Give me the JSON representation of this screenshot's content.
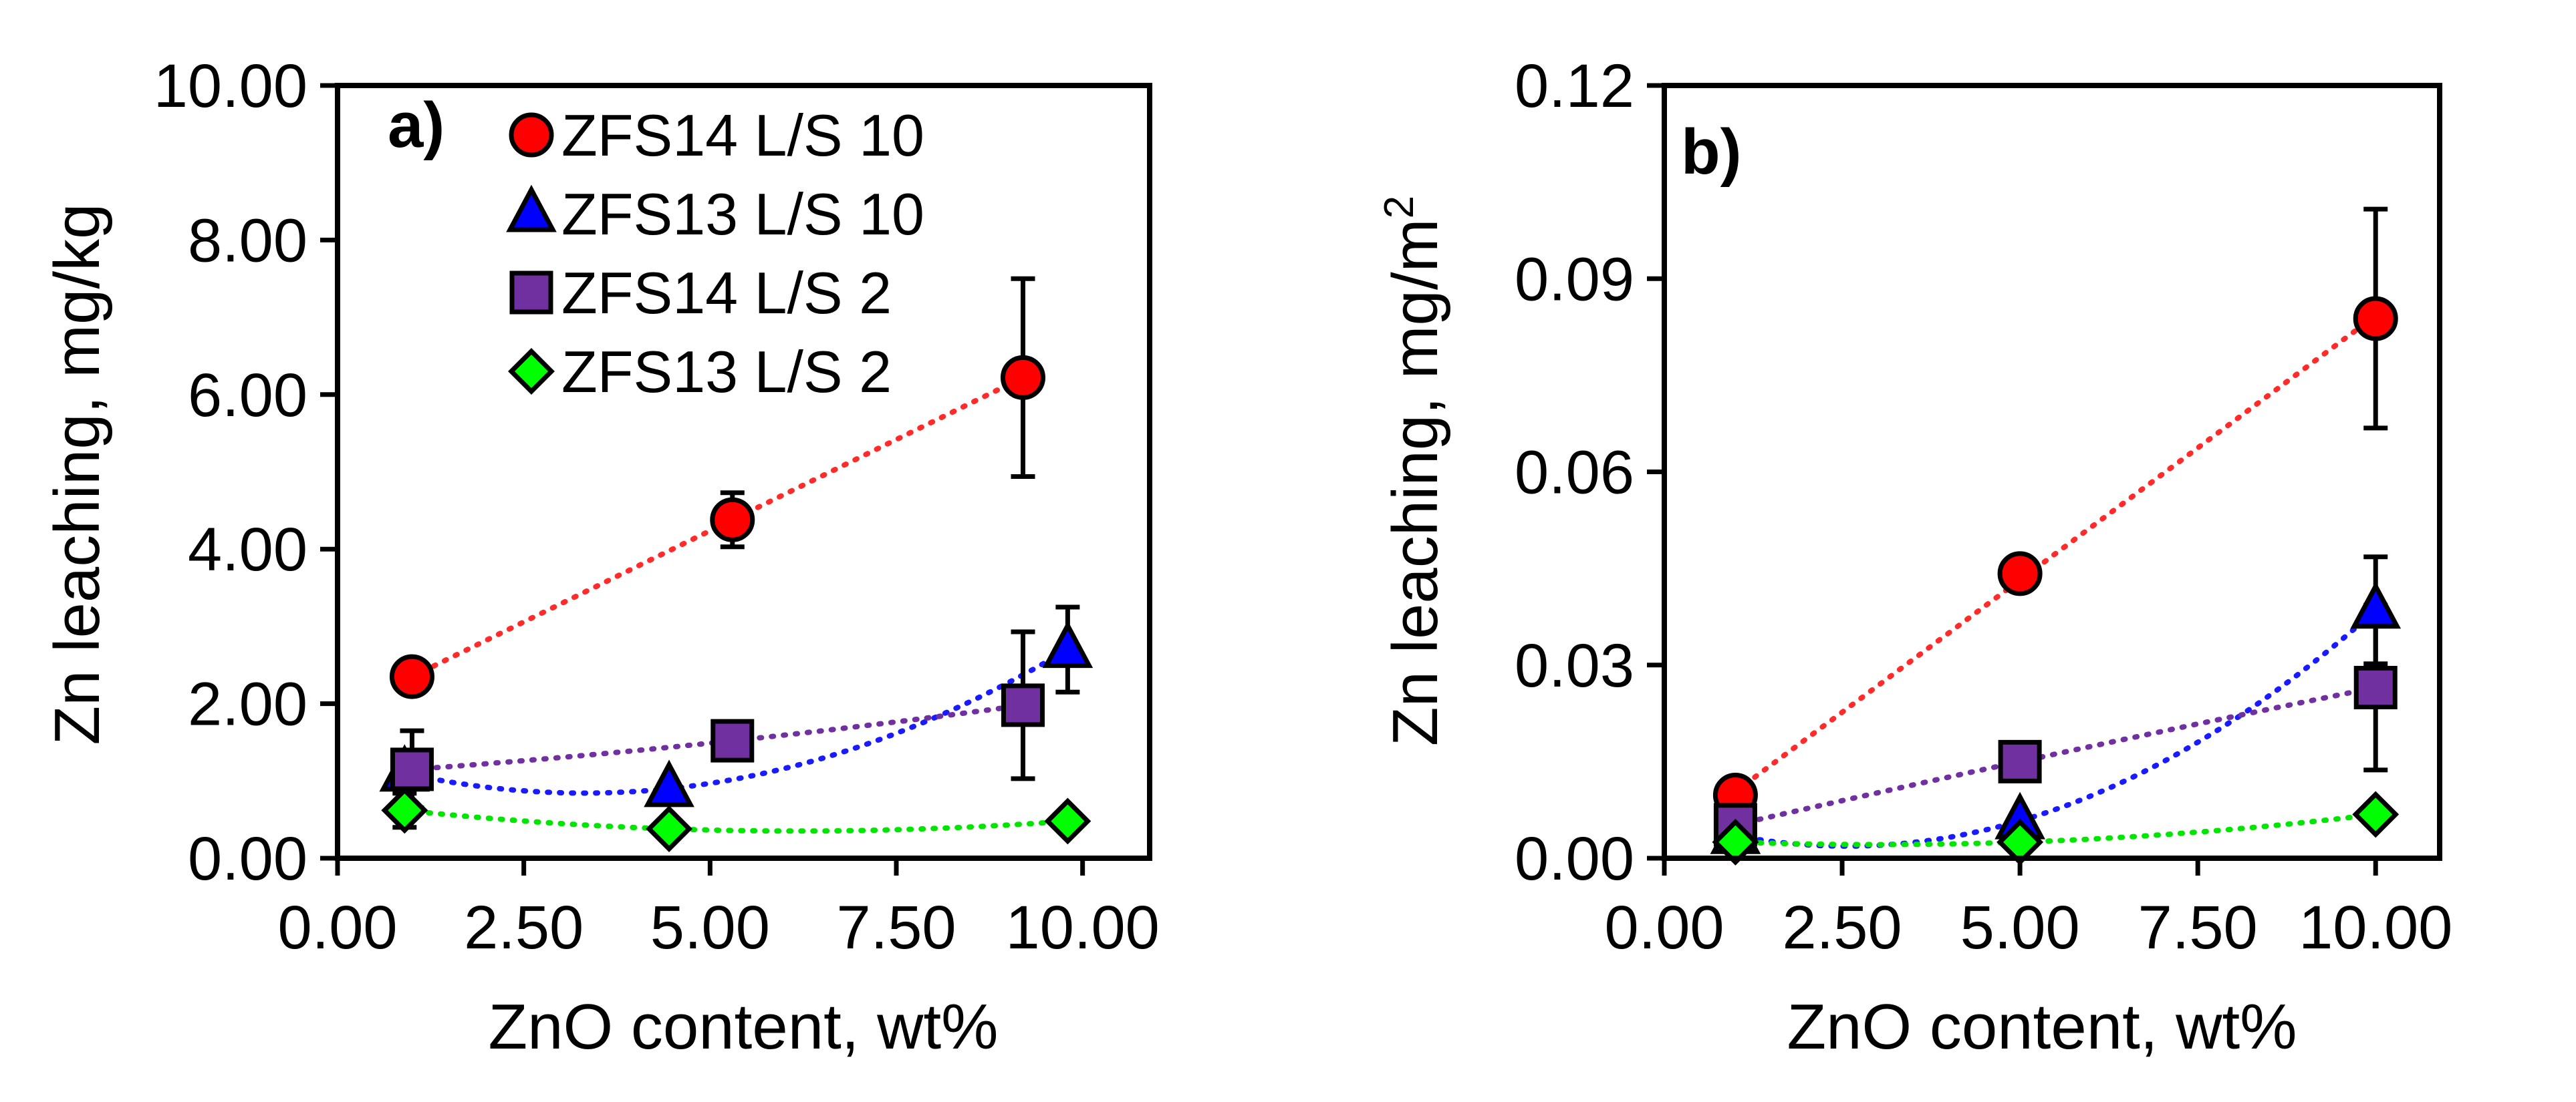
{
  "chart_data": [
    {
      "type": "scatter",
      "panel_label": "a)",
      "xlabel": "ZnO content, wt%",
      "ylabel": "Zn leaching, mg/kg",
      "xlim": [
        0,
        10.9
      ],
      "ylim": [
        0,
        10
      ],
      "xticks": [
        "0.00",
        "2.50",
        "5.00",
        "7.50",
        "10.00"
      ],
      "xtick_values": [
        0,
        2.5,
        5,
        7.5,
        10
      ],
      "yticks": [
        "0.00",
        "2.00",
        "4.00",
        "6.00",
        "8.00",
        "10.00"
      ],
      "ytick_values": [
        0,
        2,
        4,
        6,
        8,
        10
      ],
      "legend": {
        "placement": "top-left",
        "entries": [
          "ZFS14 L/S 10",
          "ZFS13 L/S 10",
          "ZFS14 L/S 2",
          "ZFS13 L/S 2"
        ]
      },
      "series": [
        {
          "name": "ZFS14 L/S 10",
          "marker": "circle",
          "color": "#ff0000",
          "trend_color": "#ff2a2a",
          "trend": "linear",
          "x": [
            1.0,
            5.3,
            9.2
          ],
          "y": [
            2.35,
            4.38,
            6.22
          ],
          "err": [
            0.12,
            0.35,
            1.28
          ]
        },
        {
          "name": "ZFS13 L/S 10",
          "marker": "triangle",
          "color": "#0000ff",
          "trend_color": "#1a1aff",
          "trend": "polynomial",
          "x": [
            0.9,
            4.45,
            9.8
          ],
          "y": [
            1.1,
            0.9,
            2.7
          ],
          "err": [
            0.0,
            0.0,
            0.55
          ]
        },
        {
          "name": "ZFS14 L/S 2",
          "marker": "square",
          "color": "#7030a0",
          "trend_color": "#7030a0",
          "trend": "polynomial",
          "x": [
            1.0,
            5.3,
            9.2
          ],
          "y": [
            1.15,
            1.52,
            1.98
          ],
          "err": [
            0.5,
            0.0,
            0.95
          ]
        },
        {
          "name": "ZFS13 L/S 2",
          "marker": "diamond",
          "color": "#00ff00",
          "trend_color": "#00e600",
          "trend": "polynomial",
          "x": [
            0.9,
            4.45,
            9.8
          ],
          "y": [
            0.62,
            0.38,
            0.48
          ],
          "err": [
            0.22,
            0.0,
            0.0
          ]
        }
      ]
    },
    {
      "type": "scatter",
      "panel_label": "b)",
      "xlabel": "ZnO content, wt%",
      "ylabel": "Zn leaching, mg/m",
      "ylabel_superscript": "2",
      "xlim": [
        0,
        10.9
      ],
      "ylim": [
        0,
        0.12
      ],
      "xticks": [
        "0.00",
        "2.50",
        "5.00",
        "7.50",
        "10.00"
      ],
      "xtick_values": [
        0,
        2.5,
        5,
        7.5,
        10
      ],
      "yticks": [
        "0.00",
        "0.03",
        "0.06",
        "0.09",
        "0.12"
      ],
      "ytick_values": [
        0,
        0.03,
        0.06,
        0.09,
        0.12
      ],
      "series": [
        {
          "name": "ZFS14 L/S 10",
          "marker": "circle",
          "color": "#ff0000",
          "trend_color": "#ff2a2a",
          "trend": "linear",
          "x": [
            1.0,
            5.0,
            10.0
          ],
          "y": [
            0.0098,
            0.0442,
            0.0838
          ],
          "err": [
            0.001,
            0.002,
            0.017
          ]
        },
        {
          "name": "ZFS13 L/S 10",
          "marker": "triangle",
          "color": "#0000ff",
          "trend_color": "#1a1aff",
          "trend": "polynomial",
          "x": [
            1.0,
            5.0,
            10.0
          ],
          "y": [
            0.0035,
            0.0058,
            0.0385
          ],
          "err": [
            0.0,
            0.0,
            0.0083
          ]
        },
        {
          "name": "ZFS14 L/S 2",
          "marker": "square",
          "color": "#7030a0",
          "trend_color": "#7030a0",
          "trend": "polynomial",
          "x": [
            1.0,
            5.0,
            10.0
          ],
          "y": [
            0.0052,
            0.015,
            0.0265
          ],
          "err": [
            0.0,
            0.0,
            0.0128
          ]
        },
        {
          "name": "ZFS13 L/S 2",
          "marker": "diamond",
          "color": "#00ff00",
          "trend_color": "#00e600",
          "trend": "polynomial",
          "x": [
            1.0,
            5.0,
            10.0
          ],
          "y": [
            0.0025,
            0.0025,
            0.0068
          ],
          "err": [
            0.0,
            0.0,
            0.0
          ]
        }
      ]
    }
  ]
}
